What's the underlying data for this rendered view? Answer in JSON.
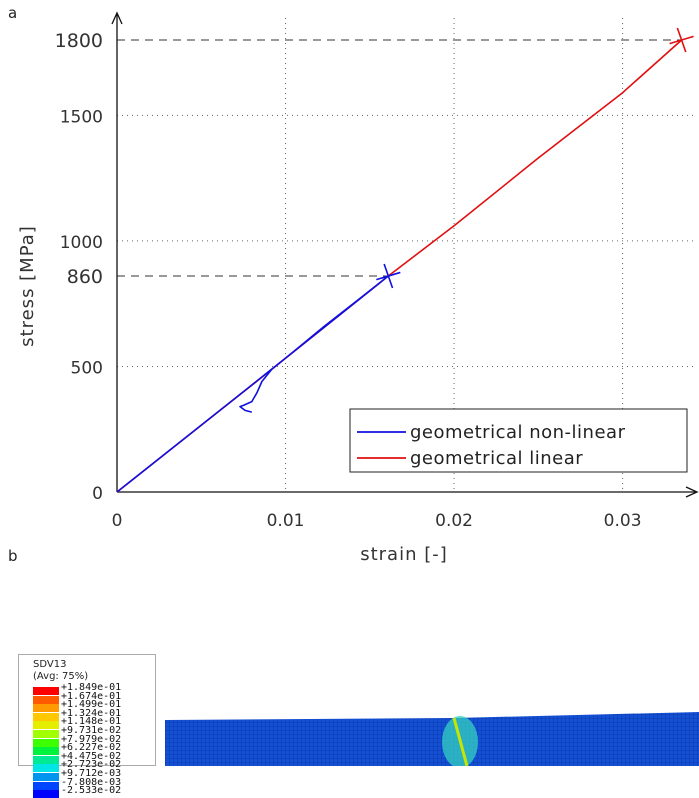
{
  "panel_labels": {
    "a": "a",
    "b": "b"
  },
  "chart_data": {
    "type": "line",
    "xlabel": "strain [-]",
    "ylabel": "stress [MPa]",
    "xlim": [
      0,
      0.034
    ],
    "ylim": [
      0,
      1800
    ],
    "x_ticks": [
      {
        "value": 0,
        "label": "0"
      },
      {
        "value": 0.01,
        "label": "0.01"
      },
      {
        "value": 0.02,
        "label": "0.02"
      },
      {
        "value": 0.03,
        "label": "0.03"
      }
    ],
    "y_ticks": [
      {
        "value": 0,
        "label": "0"
      },
      {
        "value": 500,
        "label": "500"
      },
      {
        "value": 1000,
        "label": "1000"
      },
      {
        "value": 1500,
        "label": "1500"
      }
    ],
    "grid": true,
    "legend_position": "bottom-right",
    "series": [
      {
        "name": "geometrical non-linear",
        "color": "#1010e0",
        "x": [
          0,
          0.004,
          0.008,
          0.012,
          0.0161,
          0.0161,
          0.0142,
          0.0123,
          0.0104,
          0.0092,
          0.0086,
          0.0083,
          0.008,
          0.0075,
          0.0073,
          0.0076,
          0.008
        ],
        "y": [
          0,
          213,
          426,
          640,
          860,
          860,
          760,
          660,
          555,
          490,
          440,
          395,
          360,
          345,
          340,
          325,
          318
        ]
      },
      {
        "name": "geometrical linear",
        "color": "#e01010",
        "x": [
          0,
          0.008,
          0.0161,
          0.02,
          0.025,
          0.03,
          0.0335
        ],
        "y": [
          0,
          425,
          860,
          1060,
          1330,
          1590,
          1800
        ]
      }
    ],
    "failure_markers": [
      {
        "x": 0.0161,
        "y": 860,
        "color": "#1010e0"
      },
      {
        "x": 0.0335,
        "y": 1800,
        "color": "#e01010"
      }
    ],
    "reference_lines": [
      {
        "x": 0.0161,
        "y": 860,
        "label": "860",
        "label_color": "#1a1a8c"
      },
      {
        "x": 0.0335,
        "y": 1800,
        "label": "1800",
        "label_color": "#e01010"
      }
    ]
  },
  "colorbar": {
    "title_line1": "SDV13",
    "title_line2": "(Avg: 75%)",
    "entries": [
      {
        "label": "+1.849e-01",
        "color": "#ff0000"
      },
      {
        "label": "+1.674e-01",
        "color": "#ff5a00"
      },
      {
        "label": "+1.499e-01",
        "color": "#ff9a00"
      },
      {
        "label": "+1.324e-01",
        "color": "#ffc800"
      },
      {
        "label": "+1.148e-01",
        "color": "#e6ee00"
      },
      {
        "label": "+9.731e-02",
        "color": "#a0ff00"
      },
      {
        "label": "+7.979e-02",
        "color": "#3cff00"
      },
      {
        "label": "+6.227e-02",
        "color": "#00f33c"
      },
      {
        "label": "+4.475e-02",
        "color": "#00ea96"
      },
      {
        "label": "+2.723e-02",
        "color": "#00e6e6"
      },
      {
        "label": "+9.712e-03",
        "color": "#0096f0"
      },
      {
        "label": "-7.808e-03",
        "color": "#0046ff"
      },
      {
        "label": "-2.533e-02",
        "color": "#0000ff"
      }
    ]
  },
  "mesh": {
    "base_color": "#1450d6",
    "band_color": "#33d0c0",
    "crack_color": "#c6e600"
  }
}
